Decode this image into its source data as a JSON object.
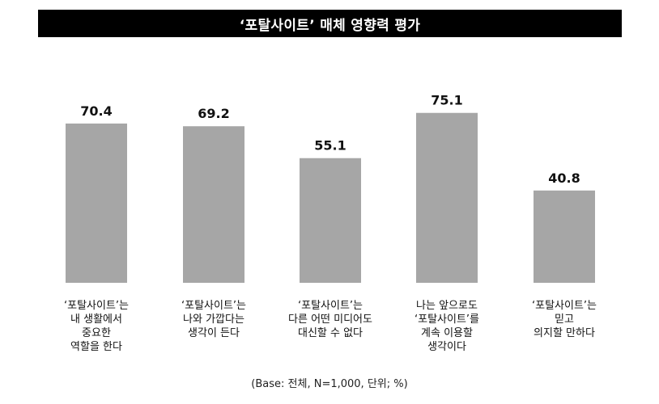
{
  "chart_data": {
    "type": "bar",
    "title": "‘포탈사이트’ 매체 영향력 평가",
    "categories": [
      [
        "‘포탈사이트’는",
        "내 생활에서",
        "중요한",
        "역할을 한다"
      ],
      [
        "‘포탈사이트’는",
        "나와 가깝다는",
        "생각이 든다"
      ],
      [
        "‘포탈사이트’는",
        "다른 어떤 미디어도",
        "대신할 수 없다"
      ],
      [
        "나는 앞으로도",
        "‘포탈사이트’를",
        "계속 이용할",
        "생각이다"
      ],
      [
        "‘포탈사이트’는",
        "믿고",
        "의지할 만하다"
      ]
    ],
    "values": [
      70.4,
      69.2,
      55.1,
      75.1,
      40.8
    ],
    "value_labels": [
      "70.4",
      "69.2",
      "55.1",
      "75.1",
      "40.8"
    ],
    "ylim": [
      0,
      100
    ],
    "grid": false,
    "bar_color": "#a6a6a6",
    "note": "(Base: 전체, N=1,000, 단위; %)"
  }
}
